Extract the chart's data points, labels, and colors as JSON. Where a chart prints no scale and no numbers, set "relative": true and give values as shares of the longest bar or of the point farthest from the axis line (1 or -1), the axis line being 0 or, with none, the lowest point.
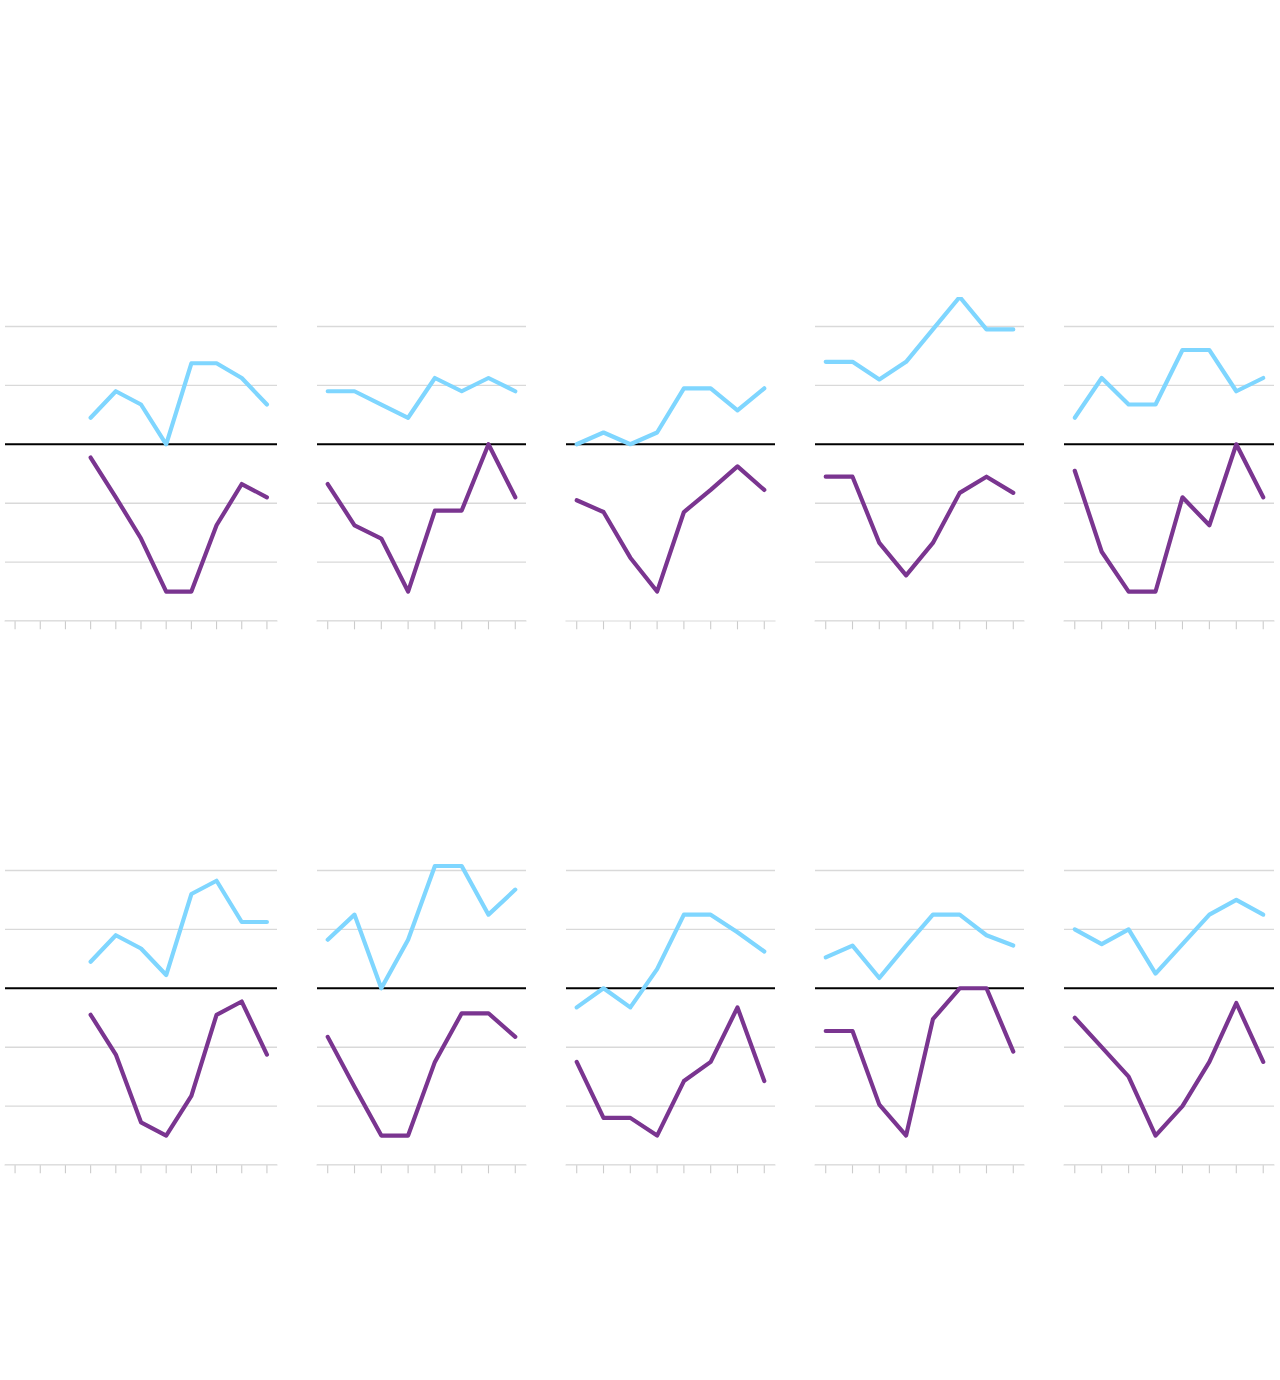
{
  "chart_data": [
    {
      "type": "line",
      "relative": true,
      "grid": "y",
      "categories": [
        null,
        null,
        null,
        null,
        null,
        null,
        null,
        null,
        null,
        null,
        null
      ],
      "series": [
        {
          "color": "#7fd6ff",
          "values": [
            null,
            null,
            null,
            0.18,
            0.36,
            0.27,
            0,
            0.55,
            0.55,
            0.45,
            0.27
          ]
        },
        {
          "color": "#7a3590",
          "values": [
            null,
            null,
            null,
            -0.09,
            -0.36,
            -0.64,
            -1,
            -1,
            -0.55,
            -0.27,
            -0.36
          ]
        }
      ]
    },
    {
      "type": "line",
      "relative": true,
      "grid": "y",
      "categories": [
        null,
        null,
        null,
        null,
        null,
        null,
        null,
        null
      ],
      "series": [
        {
          "color": "#7fd6ff",
          "values": [
            0.36,
            0.36,
            0.27,
            0.18,
            0.45,
            0.36,
            0.45,
            0.36
          ]
        },
        {
          "color": "#7a3590",
          "values": [
            -0.27,
            -0.55,
            -0.64,
            -1,
            -0.45,
            -0.45,
            0,
            -0.36
          ]
        }
      ]
    },
    {
      "type": "line",
      "relative": true,
      "grid": false,
      "categories": [
        null,
        null,
        null,
        null,
        null,
        null,
        null,
        null
      ],
      "series": [
        {
          "color": "#7fd6ff",
          "values": [
            0,
            0.08,
            0,
            0.08,
            0.38,
            0.38,
            0.23,
            0.38
          ]
        },
        {
          "color": "#7a3590",
          "values": [
            -0.38,
            -0.46,
            -0.77,
            -1,
            -0.46,
            -0.31,
            -0.15,
            -0.31
          ]
        }
      ]
    },
    {
      "type": "line",
      "relative": true,
      "grid": "y",
      "categories": [
        null,
        null,
        null,
        null,
        null,
        null,
        null,
        null
      ],
      "series": [
        {
          "color": "#7fd6ff",
          "values": [
            0.56,
            0.56,
            0.44,
            0.56,
            0.78,
            1,
            0.78,
            0.78
          ]
        },
        {
          "color": "#7a3590",
          "values": [
            -0.22,
            -0.22,
            -0.67,
            -0.89,
            -0.67,
            -0.33,
            -0.22,
            -0.33
          ]
        }
      ]
    },
    {
      "type": "line",
      "relative": true,
      "grid": "y",
      "categories": [
        null,
        null,
        null,
        null,
        null,
        null,
        null,
        null
      ],
      "series": [
        {
          "color": "#7fd6ff",
          "values": [
            0.18,
            0.45,
            0.27,
            0.27,
            0.64,
            0.64,
            0.36,
            0.45
          ]
        },
        {
          "color": "#7a3590",
          "values": [
            -0.18,
            -0.73,
            -1,
            -1,
            -0.36,
            -0.55,
            0,
            -0.36
          ]
        }
      ]
    },
    {
      "type": "line",
      "relative": true,
      "grid": "y",
      "categories": [
        null,
        null,
        null,
        null,
        null,
        null,
        null,
        null,
        null,
        null,
        null
      ],
      "series": [
        {
          "color": "#7fd6ff",
          "values": [
            null,
            null,
            null,
            0.18,
            0.36,
            0.27,
            0.09,
            0.64,
            0.73,
            0.45,
            0.45
          ]
        },
        {
          "color": "#7a3590",
          "values": [
            null,
            null,
            null,
            -0.18,
            -0.45,
            -0.91,
            -1,
            -0.73,
            -0.18,
            -0.09,
            -0.45
          ]
        }
      ]
    },
    {
      "type": "line",
      "relative": true,
      "grid": "y",
      "categories": [
        null,
        null,
        null,
        null,
        null,
        null,
        null,
        null
      ],
      "series": [
        {
          "color": "#7fd6ff",
          "values": [
            0.33,
            0.5,
            0,
            0.33,
            0.83,
            0.83,
            0.5,
            0.67
          ]
        },
        {
          "color": "#7a3590",
          "values": [
            -0.33,
            -0.67,
            -1,
            -1,
            -0.5,
            -0.17,
            -0.17,
            -0.33
          ]
        }
      ]
    },
    {
      "type": "line",
      "relative": true,
      "grid": "y",
      "categories": [
        null,
        null,
        null,
        null,
        null,
        null,
        null,
        null
      ],
      "series": [
        {
          "color": "#7fd6ff",
          "values": [
            -0.13,
            0,
            -0.13,
            0.13,
            0.5,
            0.5,
            0.38,
            0.25
          ]
        },
        {
          "color": "#7a3590",
          "values": [
            -0.5,
            -0.88,
            -0.88,
            -1,
            -0.63,
            -0.5,
            -0.13,
            -0.63
          ]
        }
      ]
    },
    {
      "type": "line",
      "relative": true,
      "grid": "y",
      "categories": [
        null,
        null,
        null,
        null,
        null,
        null,
        null,
        null
      ],
      "series": [
        {
          "color": "#7fd6ff",
          "values": [
            0.21,
            0.29,
            0.07,
            0.29,
            0.5,
            0.5,
            0.36,
            0.29
          ]
        },
        {
          "color": "#7a3590",
          "values": [
            -0.29,
            -0.29,
            -0.79,
            -1,
            -0.21,
            0,
            0,
            -0.43
          ]
        }
      ]
    },
    {
      "type": "line",
      "relative": true,
      "grid": "y",
      "categories": [
        null,
        null,
        null,
        null,
        null,
        null,
        null,
        null
      ],
      "series": [
        {
          "color": "#7fd6ff",
          "values": [
            0.4,
            0.3,
            0.4,
            0.1,
            0.3,
            0.5,
            0.6,
            0.5
          ]
        },
        {
          "color": "#7a3590",
          "values": [
            -0.2,
            -0.4,
            -0.6,
            -1,
            -0.8,
            -0.5,
            -0.1,
            -0.5
          ]
        }
      ]
    }
  ]
}
